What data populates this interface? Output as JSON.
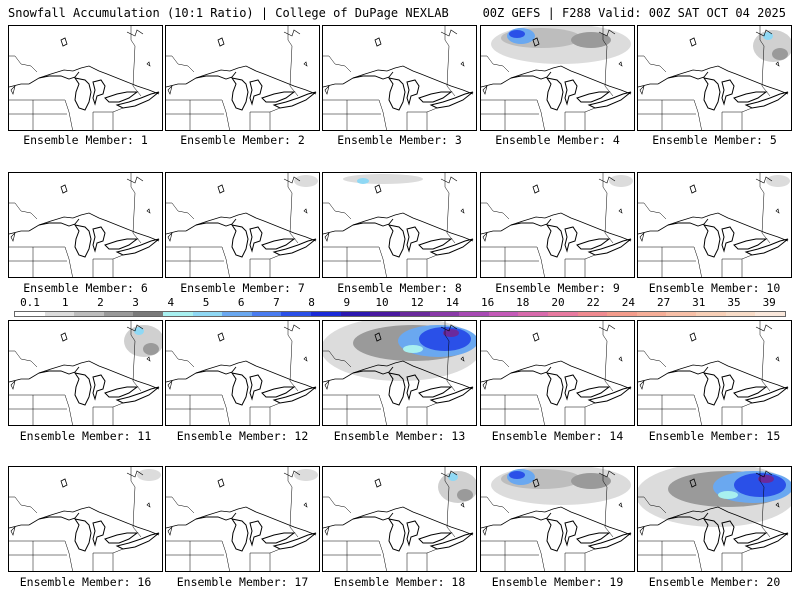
{
  "header": {
    "title_left": "Snowfall Accumulation (10:1 Ratio) | College of DuPage NEXLAB",
    "title_right": "00Z GEFS | F288 Valid: 00Z SAT OCT 04 2025"
  },
  "members": [
    {
      "label": "Ensemble Member: 1",
      "snow": "none"
    },
    {
      "label": "Ensemble Member: 2",
      "snow": "none"
    },
    {
      "label": "Ensemble Member: 3",
      "snow": "none"
    },
    {
      "label": "Ensemble Member: 4",
      "snow": "moderate-north"
    },
    {
      "label": "Ensemble Member: 5",
      "snow": "light-northeast"
    },
    {
      "label": "Ensemble Member: 6",
      "snow": "none"
    },
    {
      "label": "Ensemble Member: 7",
      "snow": "trace"
    },
    {
      "label": "Ensemble Member: 8",
      "snow": "light-north"
    },
    {
      "label": "Ensemble Member: 9",
      "snow": "trace"
    },
    {
      "label": "Ensemble Member: 10",
      "snow": "trace"
    },
    {
      "label": "Ensemble Member: 11",
      "snow": "light-northeast"
    },
    {
      "label": "Ensemble Member: 12",
      "snow": "none"
    },
    {
      "label": "Ensemble Member: 13",
      "snow": "heavy-north"
    },
    {
      "label": "Ensemble Member: 14",
      "snow": "none"
    },
    {
      "label": "Ensemble Member: 15",
      "snow": "none"
    },
    {
      "label": "Ensemble Member: 16",
      "snow": "trace"
    },
    {
      "label": "Ensemble Member: 17",
      "snow": "trace"
    },
    {
      "label": "Ensemble Member: 18",
      "snow": "light-northeast"
    },
    {
      "label": "Ensemble Member: 19",
      "snow": "moderate-north"
    },
    {
      "label": "Ensemble Member: 20",
      "snow": "heavy-north"
    }
  ],
  "colorbar": {
    "ticks": [
      "0.1",
      "1",
      "2",
      "3",
      "4",
      "5",
      "6",
      "7",
      "8",
      "9",
      "10",
      "12",
      "14",
      "16",
      "18",
      "20",
      "22",
      "24",
      "27",
      "31",
      "35",
      "39"
    ],
    "colors": [
      "#ffffff",
      "#dcdcdc",
      "#bdbdbd",
      "#9a9a9a",
      "#7a7a7a",
      "#a8f0f0",
      "#8fd8f4",
      "#6aa8f0",
      "#4a7cf0",
      "#2a50e8",
      "#1a2ad8",
      "#2c18b0",
      "#4a1aa0",
      "#6a2a9c",
      "#8a3aa8",
      "#a84ab4",
      "#c45ab8",
      "#d86aac",
      "#e87aa0",
      "#f08a90",
      "#f49c8c",
      "#f6ae98",
      "#f8c0a8",
      "#f8d0b8",
      "#f8dcc8",
      "#fae8dc"
    ]
  }
}
